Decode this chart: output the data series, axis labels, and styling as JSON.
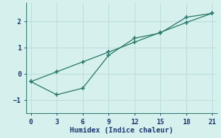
{
  "line1_x": [
    0,
    3,
    6,
    9,
    12,
    15,
    18,
    21
  ],
  "line1_y": [
    -0.3,
    -0.8,
    -0.55,
    0.7,
    1.35,
    1.55,
    2.15,
    2.3
  ],
  "line2_x": [
    0,
    3,
    6,
    9,
    12,
    15,
    18,
    21
  ],
  "line2_y": [
    -0.3,
    0.075,
    0.45,
    0.825,
    1.2,
    1.575,
    1.95,
    2.3
  ],
  "color": "#2e7d6e",
  "bg_color": "#d6f0ee",
  "grid_color": "#b8ddd9",
  "xlabel": "Humidex (Indice chaleur)",
  "xlim": [
    -0.5,
    21.5
  ],
  "ylim": [
    -1.5,
    2.7
  ],
  "xticks": [
    0,
    3,
    6,
    9,
    12,
    15,
    18,
    21
  ],
  "yticks": [
    -1,
    0,
    1,
    2
  ],
  "marker": "+",
  "markersize": 5,
  "linewidth": 1.0
}
